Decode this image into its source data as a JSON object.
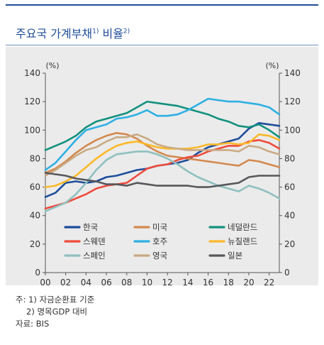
{
  "header": {
    "title": "주요국 가계부채",
    "title_sup1": "1)",
    "title_mid": " 비율",
    "title_sup2": "2)"
  },
  "notes": {
    "note1": "주: 1) 자금순환표 기준",
    "note2": "2) 명목GDP 대비",
    "source": "자료: BIS"
  },
  "chart_data": {
    "type": "line",
    "left_unit": "(%)",
    "right_unit": "(%)",
    "ylim": [
      0,
      140
    ],
    "yticks": [
      0,
      20,
      40,
      60,
      80,
      100,
      120,
      140
    ],
    "xlim": [
      2000,
      2023
    ],
    "xticks": [
      2000,
      2002,
      2004,
      2006,
      2008,
      2010,
      2012,
      2014,
      2016,
      2018,
      2020,
      2022
    ],
    "xtick_labels": [
      "00",
      "02",
      "04",
      "06",
      "08",
      "10",
      "12",
      "14",
      "16",
      "18",
      "20",
      "22"
    ],
    "legend_placement": "bottom-center",
    "series": [
      {
        "name": "한국",
        "color": "#1e4d9b",
        "x": [
          2000,
          2001,
          2002,
          2003,
          2004,
          2005,
          2006,
          2007,
          2008,
          2009,
          2010,
          2011,
          2012,
          2013,
          2014,
          2015,
          2016,
          2017,
          2018,
          2019,
          2020,
          2021,
          2022,
          2023
        ],
        "y": [
          53,
          56,
          63,
          64,
          63,
          64,
          67,
          68,
          70,
          72,
          73,
          75,
          76,
          77,
          79,
          84,
          88,
          90,
          92,
          94,
          101,
          105,
          104,
          103
        ]
      },
      {
        "name": "미국",
        "color": "#d4894e",
        "x": [
          2000,
          2001,
          2002,
          2003,
          2004,
          2005,
          2006,
          2007,
          2008,
          2009,
          2010,
          2011,
          2012,
          2013,
          2014,
          2015,
          2016,
          2017,
          2018,
          2019,
          2020,
          2021,
          2022,
          2023
        ],
        "y": [
          70,
          73,
          78,
          84,
          89,
          93,
          96,
          98,
          97,
          94,
          89,
          85,
          82,
          81,
          80,
          79,
          78,
          77,
          76,
          75,
          79,
          78,
          76,
          74
        ]
      },
      {
        "name": "네덜란드",
        "color": "#13917e",
        "x": [
          2000,
          2001,
          2002,
          2003,
          2004,
          2005,
          2006,
          2007,
          2008,
          2009,
          2010,
          2011,
          2012,
          2013,
          2014,
          2015,
          2016,
          2017,
          2018,
          2019,
          2020,
          2021,
          2022,
          2023
        ],
        "y": [
          86,
          89,
          92,
          96,
          102,
          106,
          108,
          110,
          112,
          116,
          120,
          119,
          118,
          117,
          115,
          113,
          111,
          108,
          106,
          103,
          102,
          104,
          100,
          95
        ]
      },
      {
        "name": "스웨덴",
        "color": "#ee4b3b",
        "x": [
          2000,
          2001,
          2002,
          2003,
          2004,
          2005,
          2006,
          2007,
          2008,
          2009,
          2010,
          2011,
          2012,
          2013,
          2014,
          2015,
          2016,
          2017,
          2018,
          2019,
          2020,
          2021,
          2022,
          2023
        ],
        "y": [
          45,
          47,
          49,
          52,
          55,
          59,
          61,
          62,
          63,
          68,
          73,
          75,
          76,
          79,
          81,
          82,
          85,
          87,
          89,
          89,
          92,
          93,
          91,
          87
        ]
      },
      {
        "name": "호주",
        "color": "#2fb0e3",
        "x": [
          2000,
          2001,
          2002,
          2003,
          2004,
          2005,
          2006,
          2007,
          2008,
          2009,
          2010,
          2011,
          2012,
          2013,
          2014,
          2015,
          2016,
          2017,
          2018,
          2019,
          2020,
          2021,
          2022,
          2023
        ],
        "y": [
          72,
          77,
          85,
          93,
          100,
          102,
          104,
          108,
          109,
          111,
          114,
          110,
          110,
          111,
          114,
          118,
          122,
          121,
          120,
          120,
          119,
          118,
          116,
          111
        ]
      },
      {
        "name": "뉴질랜드",
        "color": "#fbb82a",
        "x": [
          2000,
          2001,
          2002,
          2003,
          2004,
          2005,
          2006,
          2007,
          2008,
          2009,
          2010,
          2011,
          2012,
          2013,
          2014,
          2015,
          2016,
          2017,
          2018,
          2019,
          2020,
          2021,
          2022,
          2023
        ],
        "y": [
          60,
          61,
          64,
          68,
          74,
          80,
          85,
          89,
          91,
          92,
          90,
          88,
          87,
          87,
          87,
          88,
          90,
          90,
          91,
          90,
          91,
          97,
          96,
          93
        ]
      },
      {
        "name": "스페인",
        "color": "#8fc0bd",
        "x": [
          2000,
          2001,
          2002,
          2003,
          2004,
          2005,
          2006,
          2007,
          2008,
          2009,
          2010,
          2011,
          2012,
          2013,
          2014,
          2015,
          2016,
          2017,
          2018,
          2019,
          2020,
          2021,
          2022,
          2023
        ],
        "y": [
          43,
          46,
          49,
          55,
          63,
          72,
          79,
          83,
          84,
          85,
          85,
          83,
          80,
          76,
          71,
          67,
          64,
          61,
          59,
          57,
          61,
          59,
          56,
          52
        ]
      },
      {
        "name": "영국",
        "color": "#c9aa83",
        "x": [
          2000,
          2001,
          2002,
          2003,
          2004,
          2005,
          2006,
          2007,
          2008,
          2009,
          2010,
          2011,
          2012,
          2013,
          2014,
          2015,
          2016,
          2017,
          2018,
          2019,
          2020,
          2021,
          2022,
          2023
        ],
        "y": [
          68,
          72,
          77,
          82,
          86,
          88,
          92,
          95,
          95,
          97,
          94,
          90,
          88,
          87,
          86,
          86,
          86,
          86,
          86,
          85,
          89,
          88,
          85,
          83
        ]
      },
      {
        "name": "일본",
        "color": "#57585b",
        "x": [
          2000,
          2001,
          2002,
          2003,
          2004,
          2005,
          2006,
          2007,
          2008,
          2009,
          2010,
          2011,
          2012,
          2013,
          2014,
          2015,
          2016,
          2017,
          2018,
          2019,
          2020,
          2021,
          2022,
          2023
        ],
        "y": [
          70,
          69,
          68,
          66,
          65,
          64,
          62,
          62,
          61,
          63,
          62,
          61,
          61,
          61,
          61,
          60,
          60,
          61,
          62,
          63,
          67,
          68,
          68,
          68
        ]
      }
    ]
  }
}
